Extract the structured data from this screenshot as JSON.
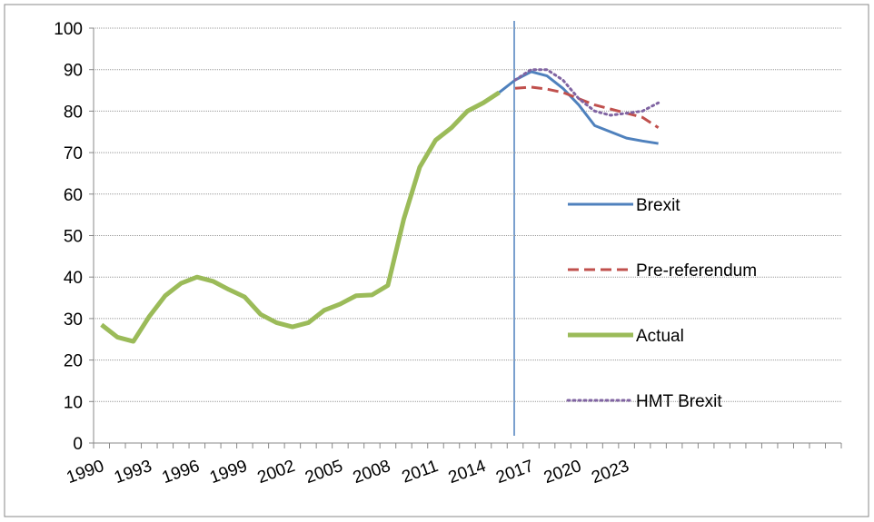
{
  "chart_data": {
    "type": "line",
    "categories": [
      "1990",
      null,
      null,
      "1993",
      null,
      null,
      "1996",
      null,
      null,
      "1999",
      null,
      null,
      "2002",
      null,
      null,
      "2005",
      null,
      null,
      "2008",
      null,
      null,
      "2011",
      null,
      null,
      "2014",
      null,
      null,
      "2017",
      null,
      null,
      "2020",
      null,
      null,
      "2023",
      null,
      null,
      null,
      null,
      null,
      null,
      null,
      null,
      null,
      null,
      null,
      null,
      null
    ],
    "series": [
      {
        "name": "Brexit",
        "color": "#4f81bd",
        "style": "solid",
        "values": [
          null,
          null,
          null,
          null,
          null,
          null,
          null,
          null,
          null,
          null,
          null,
          null,
          null,
          null,
          null,
          null,
          null,
          null,
          null,
          null,
          null,
          null,
          null,
          null,
          null,
          84.5,
          87.5,
          89.5,
          88.5,
          85.5,
          81.5,
          76.5,
          75,
          73.5,
          72.8,
          72.2,
          null,
          null,
          null,
          null,
          null,
          null,
          null,
          null,
          null,
          null,
          null
        ]
      },
      {
        "name": "Pre-referendum",
        "color": "#c0504d",
        "style": "dashed",
        "values": [
          null,
          null,
          null,
          null,
          null,
          null,
          null,
          null,
          null,
          null,
          null,
          null,
          null,
          null,
          null,
          null,
          null,
          null,
          null,
          null,
          null,
          null,
          null,
          null,
          null,
          null,
          85.5,
          85.8,
          85.3,
          84.5,
          83,
          81.5,
          80.5,
          79.5,
          78.5,
          76,
          null,
          null,
          null,
          null,
          null,
          null,
          null,
          null,
          null,
          null,
          null
        ]
      },
      {
        "name": "Actual",
        "color": "#9bbb59",
        "style": "solid",
        "values": [
          28.5,
          25.5,
          24.5,
          30.5,
          35.5,
          38.5,
          40,
          39,
          37,
          35.2,
          31,
          29,
          28,
          29,
          32,
          33.5,
          35.5,
          35.7,
          38,
          54,
          66.5,
          73,
          76,
          80,
          82,
          84.5,
          null,
          null,
          null,
          null,
          null,
          null,
          null,
          null,
          null,
          null,
          null,
          null,
          null,
          null,
          null,
          null,
          null,
          null,
          null,
          null,
          null
        ]
      },
      {
        "name": "HMT Brexit",
        "color": "#8064a2",
        "style": "dotted",
        "values": [
          null,
          null,
          null,
          null,
          null,
          null,
          null,
          null,
          null,
          null,
          null,
          null,
          null,
          null,
          null,
          null,
          null,
          null,
          null,
          null,
          null,
          null,
          null,
          null,
          null,
          null,
          87.5,
          90,
          90,
          87.5,
          83,
          80,
          79,
          79.5,
          80,
          82,
          null,
          null,
          null,
          null,
          null,
          null,
          null,
          null,
          null,
          null,
          null
        ]
      }
    ],
    "ylim": [
      0,
      100
    ],
    "yticks": [
      0,
      10,
      20,
      30,
      40,
      50,
      60,
      70,
      80,
      90,
      100
    ],
    "grid": true,
    "legend": "right"
  }
}
